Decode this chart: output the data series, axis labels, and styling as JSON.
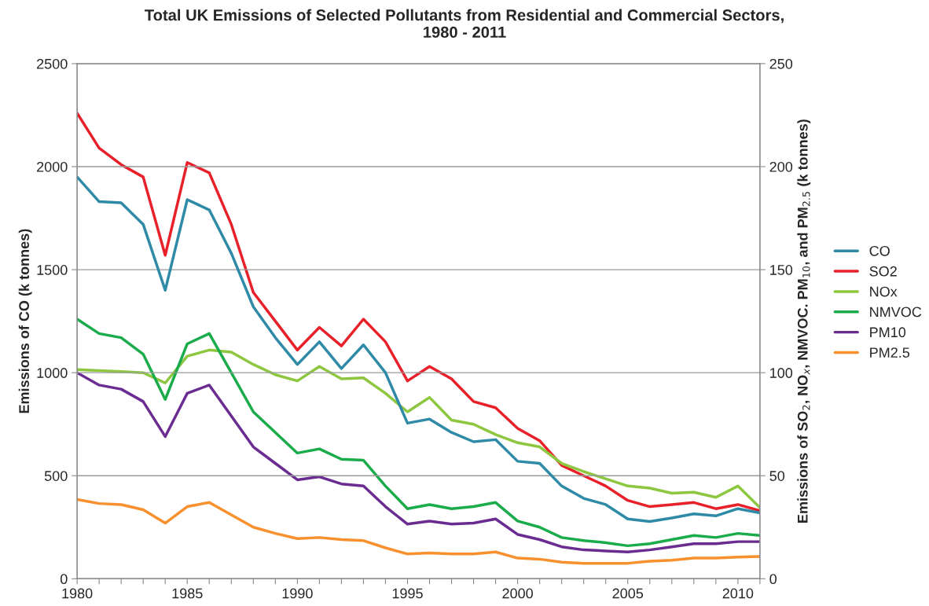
{
  "chart_data": {
    "type": "line",
    "title": "Total UK Emissions of Selected Pollutants from Residential and Commercial Sectors,\n1980 - 2011",
    "ylabel": "Emissions of CO (k tonnes)",
    "y2label": "Emissions of SO$_{2}$, NO$_{x}$, NMVOC. PM$_{10}$, and PM$_{2.5}$ (k tonnes)",
    "x": [
      1980,
      1981,
      1982,
      1983,
      1984,
      1985,
      1986,
      1987,
      1988,
      1989,
      1990,
      1991,
      1992,
      1993,
      1994,
      1995,
      1996,
      1997,
      1998,
      1999,
      2000,
      2001,
      2002,
      2003,
      2004,
      2005,
      2006,
      2007,
      2008,
      2009,
      2010,
      2011
    ],
    "xlim": [
      1980,
      2011
    ],
    "xticks": [
      1980,
      {
        "value": 1981,
        "label": null
      },
      {
        "value": 1982,
        "label": null
      },
      {
        "value": 1983,
        "label": null
      },
      {
        "value": 1984,
        "label": null
      },
      1985,
      {
        "value": 1986,
        "label": null
      },
      {
        "value": 1987,
        "label": null
      },
      {
        "value": 1988,
        "label": null
      },
      {
        "value": 1989,
        "label": null
      },
      1990,
      {
        "value": 1991,
        "label": null
      },
      {
        "value": 1992,
        "label": null
      },
      {
        "value": 1993,
        "label": null
      },
      {
        "value": 1994,
        "label": null
      },
      1995,
      {
        "value": 1996,
        "label": null
      },
      {
        "value": 1997,
        "label": null
      },
      {
        "value": 1998,
        "label": null
      },
      {
        "value": 1999,
        "label": null
      },
      2000,
      {
        "value": 2001,
        "label": null
      },
      {
        "value": 2002,
        "label": null
      },
      {
        "value": 2003,
        "label": null
      },
      {
        "value": 2004,
        "label": null
      },
      2005,
      {
        "value": 2006,
        "label": null
      },
      {
        "value": 2007,
        "label": null
      },
      {
        "value": 2008,
        "label": null
      },
      {
        "value": 2009,
        "label": null
      },
      2010,
      {
        "value": 2011,
        "label": null
      }
    ],
    "ylim": [
      0,
      2500
    ],
    "yticks": [
      0,
      500,
      1000,
      1500,
      2000,
      2500
    ],
    "y2lim": [
      0,
      250
    ],
    "y2ticks": [
      0,
      50,
      100,
      150,
      200,
      250
    ],
    "grid": "y",
    "legend": "right",
    "line_style": "solid",
    "series": [
      {
        "name": "CO",
        "color": "#2e8aa6",
        "values": [
          1950,
          1830,
          1825,
          1720,
          1400,
          1840,
          1790,
          1580,
          1320,
          1170,
          1040,
          1150,
          1020,
          1135,
          1000,
          755,
          775,
          710,
          665,
          675,
          570,
          560,
          450,
          390,
          360,
          290,
          278,
          295,
          315,
          305,
          340,
          320
        ]
      },
      {
        "name": "SO2",
        "color": "#e8202a",
        "axis": "y2",
        "values": [
          226,
          209,
          201,
          195,
          157,
          202,
          197,
          172,
          139,
          125,
          111,
          122,
          113,
          126,
          115,
          96,
          103,
          97,
          86,
          83,
          73,
          67,
          55,
          50,
          45,
          38,
          35,
          36,
          37,
          34,
          36,
          33
        ]
      },
      {
        "name": "NOx",
        "color": "#8dc63f",
        "axis": "y2",
        "values": [
          101.5,
          101,
          100.5,
          100,
          95,
          108,
          111,
          110,
          104,
          99,
          96,
          103,
          97,
          97.5,
          90,
          81,
          88,
          77,
          75,
          70,
          66,
          64,
          56,
          52,
          48.5,
          45,
          44,
          41.5,
          42,
          39.5,
          45,
          34.5
        ]
      },
      {
        "name": "NMVOC",
        "color": "#1aab4b",
        "axis": "y2",
        "values": [
          126,
          119,
          117,
          109,
          87,
          114,
          119,
          100,
          81,
          71,
          61,
          63,
          58,
          57.5,
          45,
          34,
          36,
          34,
          35,
          37,
          28,
          25,
          20,
          18.5,
          17.5,
          16,
          17,
          19,
          21,
          20,
          22,
          21
        ]
      },
      {
        "name": "PM10",
        "color": "#6a2c91",
        "axis": "y2",
        "values": [
          100,
          94,
          92,
          86,
          69,
          90,
          94,
          79,
          64,
          56,
          48,
          49.5,
          46,
          45,
          35,
          26.5,
          28,
          26.5,
          27,
          29,
          21.5,
          19,
          15.5,
          14,
          13.5,
          13,
          14,
          15.5,
          17,
          17,
          18,
          18
        ]
      },
      {
        "name": "PM2.5",
        "color": "#f7902d",
        "axis": "y2",
        "values": [
          38.5,
          36.5,
          36,
          33.5,
          27,
          35,
          37,
          31,
          25,
          22,
          19.5,
          20,
          19,
          18.5,
          15,
          12,
          12.5,
          12,
          12,
          13,
          10,
          9.5,
          8,
          7.5,
          7.5,
          7.5,
          8.5,
          9,
          10,
          10,
          10.5,
          10.8
        ]
      }
    ]
  }
}
